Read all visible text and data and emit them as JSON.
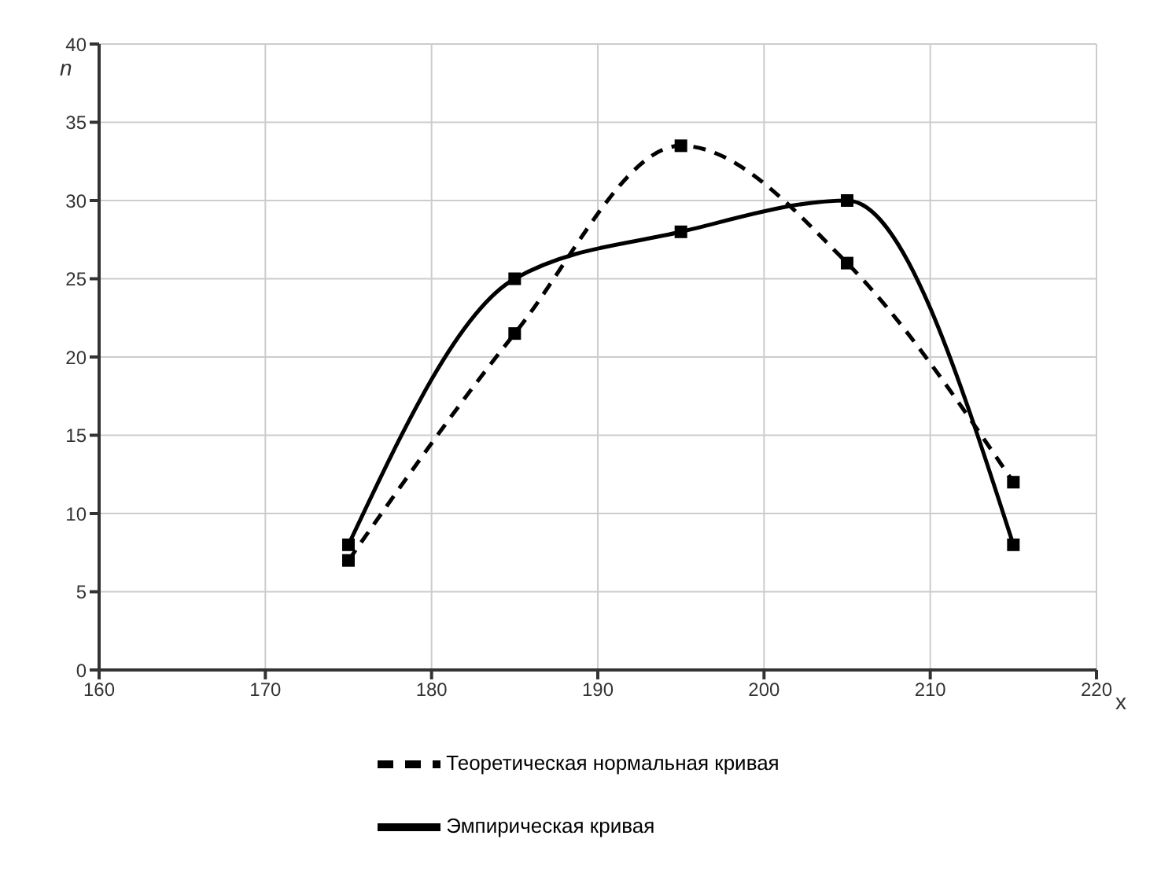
{
  "chart_data": {
    "type": "line",
    "xlabel": "x",
    "ylabel": "n",
    "x": [
      175,
      185,
      195,
      205,
      215
    ],
    "series": [
      {
        "name": "Теоретическая нормальная кривая",
        "color": "#000000",
        "line_style": "dashed",
        "values": [
          7,
          21.5,
          33.5,
          26,
          12
        ]
      },
      {
        "name": "Эмпирическая кривая",
        "color": "#000000",
        "line_style": "solid",
        "values": [
          8,
          25,
          28,
          30,
          8
        ]
      }
    ],
    "xlim": [
      160,
      220
    ],
    "xticks": [
      160,
      170,
      180,
      190,
      200,
      210,
      220
    ],
    "ylim": [
      0,
      40
    ],
    "yticks": [
      0,
      5,
      10,
      15,
      20,
      25,
      30,
      35,
      40
    ],
    "grid": true,
    "legend": "bottom",
    "marker": "square"
  }
}
